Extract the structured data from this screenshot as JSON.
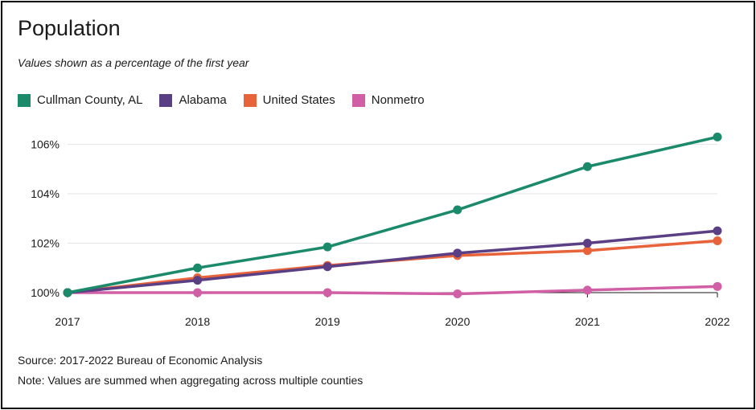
{
  "header": {
    "title": "Population",
    "subtitle": "Values shown as a percentage of the first year"
  },
  "footer": {
    "source": "Source: 2017-2022 Bureau of Economic Analysis",
    "note": "Note: Values are summed when aggregating across multiple counties"
  },
  "colors": {
    "grid": "#e3e3e3",
    "axis": "#1a1a1a"
  },
  "chart_data": {
    "type": "line",
    "title": "Population",
    "subtitle": "Values shown as a percentage of the first year",
    "xlabel": "",
    "ylabel": "",
    "x": [
      "2017",
      "2018",
      "2019",
      "2020",
      "2021",
      "2022"
    ],
    "ylim": [
      100,
      106.8
    ],
    "yticks": [
      100,
      102,
      104,
      106
    ],
    "ytick_labels": [
      "100%",
      "102%",
      "104%",
      "106%"
    ],
    "grid": "horizontal",
    "legend_position": "top-left",
    "series": [
      {
        "name": "Cullman County, AL",
        "color": "#1a8a6b",
        "values": [
          100,
          101.0,
          101.85,
          103.35,
          105.1,
          106.3
        ]
      },
      {
        "name": "Alabama",
        "color": "#5b3f84",
        "values": [
          100,
          100.5,
          101.05,
          101.6,
          102.0,
          102.5
        ]
      },
      {
        "name": "United States",
        "color": "#e8623a",
        "values": [
          100,
          100.6,
          101.1,
          101.5,
          101.7,
          102.1
        ]
      },
      {
        "name": "Nonmetro",
        "color": "#d05fa6",
        "values": [
          100,
          100.0,
          100.0,
          99.95,
          100.1,
          100.25
        ]
      }
    ]
  }
}
